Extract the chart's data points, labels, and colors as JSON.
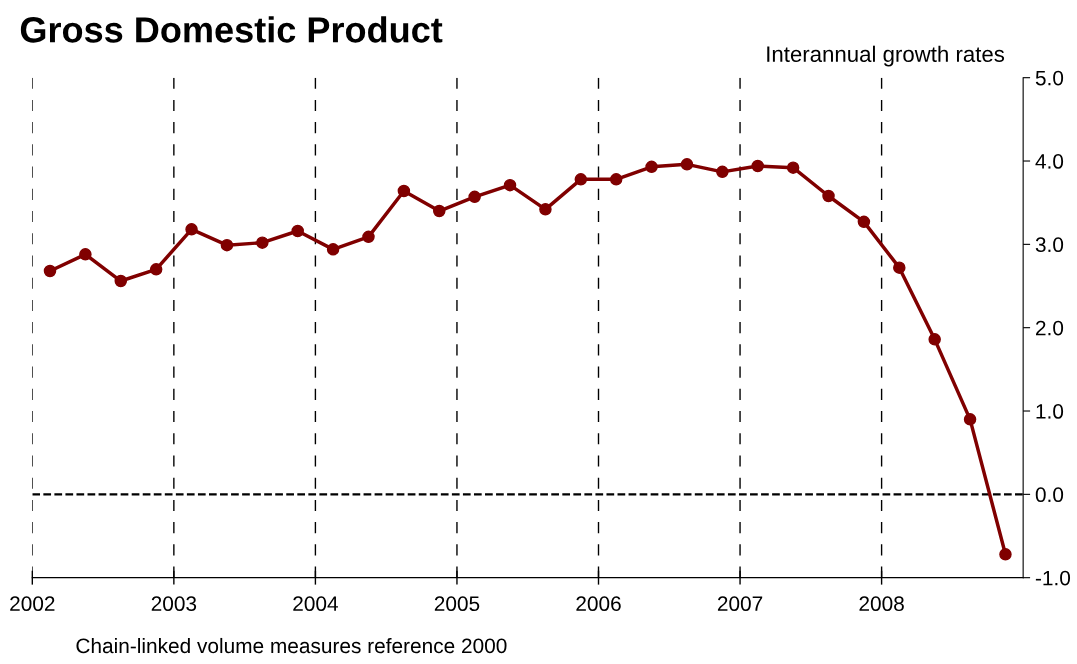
{
  "chart_data": {
    "type": "line",
    "title": "Gross Domestic Product",
    "subtitle": "Interannual growth rates",
    "annotations": [
      "Chain-linked volume measures reference 2000"
    ],
    "x": [
      2002.125,
      2002.375,
      2002.625,
      2002.875,
      2003.125,
      2003.375,
      2003.625,
      2003.875,
      2004.125,
      2004.375,
      2004.625,
      2004.875,
      2005.125,
      2005.375,
      2005.625,
      2005.875,
      2006.125,
      2006.375,
      2006.625,
      2006.875,
      2007.125,
      2007.375,
      2007.625,
      2007.875,
      2008.125,
      2008.375,
      2008.625,
      2008.875
    ],
    "series": [
      {
        "color": "#800000",
        "values": [
          2.68,
          2.88,
          2.56,
          2.7,
          3.18,
          2.99,
          3.02,
          3.16,
          2.94,
          3.09,
          3.64,
          3.4,
          3.57,
          3.71,
          3.42,
          3.78,
          3.78,
          3.93,
          3.96,
          3.87,
          3.94,
          3.92,
          3.58,
          3.27,
          2.72,
          1.86,
          0.9,
          -0.72
        ]
      }
    ],
    "xlim": [
      2002,
      2009
    ],
    "xticks": [
      2002,
      2003,
      2004,
      2005,
      2006,
      2007,
      2008
    ],
    "ylim": [
      -1,
      5
    ],
    "yticks": [
      {
        "value": -1,
        "label": "-1.0"
      },
      {
        "value": 0,
        "label": "0.0"
      },
      {
        "value": 1,
        "label": "1.0"
      },
      {
        "value": 2,
        "label": "2.0"
      },
      {
        "value": 3,
        "label": "3.0"
      },
      {
        "value": 4,
        "label": "4.0"
      },
      {
        "value": 5,
        "label": "5.0"
      }
    ],
    "ref_lines": [
      {
        "axis": "y",
        "value": 0,
        "color": "#000000",
        "line_style": "dashed"
      }
    ],
    "marker": "circle",
    "line_style": "solid",
    "grid": "x",
    "legend": false
  }
}
